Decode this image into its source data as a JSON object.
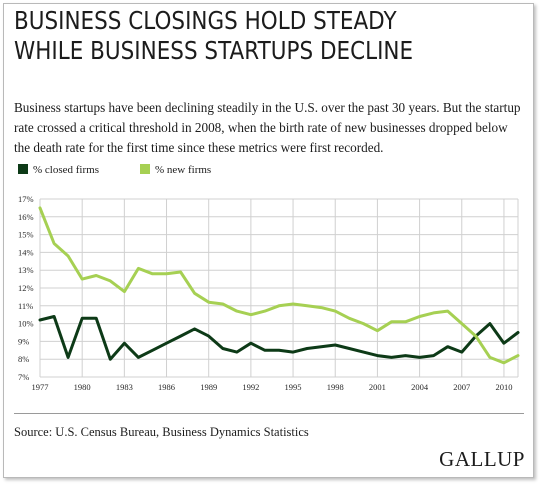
{
  "title": "BUSINESS CLOSINGS HOLD STEADY WHILE BUSINESS STARTUPS DECLINE",
  "subtitle": "Business startups have been declining steadily in the U.S. over the past 30 years. But the startup rate crossed a critical threshold in 2008, when the birth rate of new businesses dropped below the death rate for the first time since these metrics were first recorded.",
  "source": "Source: U.S. Census Bureau, Business Dynamics Statistics",
  "logo": "GALLUP",
  "colors": {
    "closed": "#0d3a17",
    "new": "#a6d053",
    "grid": "#d0d0d0"
  },
  "chart_data": {
    "type": "line",
    "x": [
      1977,
      1978,
      1979,
      1980,
      1981,
      1982,
      1983,
      1984,
      1985,
      1986,
      1987,
      1988,
      1989,
      1990,
      1991,
      1992,
      1993,
      1994,
      1995,
      1996,
      1997,
      1998,
      1999,
      2000,
      2001,
      2002,
      2003,
      2004,
      2005,
      2006,
      2007,
      2008,
      2009,
      2010,
      2011
    ],
    "x_ticks": [
      1977,
      1980,
      1983,
      1986,
      1989,
      1992,
      1995,
      1998,
      2001,
      2004,
      2007,
      2010
    ],
    "y_ticks": [
      7,
      8,
      9,
      10,
      11,
      12,
      13,
      14,
      15,
      16,
      17
    ],
    "y_tick_labels": [
      "7%",
      "8%",
      "9%",
      "10%",
      "11%",
      "12%",
      "13%",
      "14%",
      "15%",
      "16%",
      "17%"
    ],
    "ylim": [
      7,
      17
    ],
    "xlim": [
      1977,
      2011
    ],
    "grid": true,
    "legend_position": "top-left",
    "series": [
      {
        "name": "% closed firms",
        "color": "#0d3a17",
        "values": [
          10.2,
          10.4,
          8.1,
          10.3,
          10.3,
          8.0,
          8.9,
          8.1,
          8.5,
          8.9,
          9.3,
          9.7,
          9.3,
          8.6,
          8.4,
          8.9,
          8.5,
          8.5,
          8.4,
          8.6,
          8.7,
          8.8,
          8.6,
          8.4,
          8.2,
          8.1,
          8.2,
          8.1,
          8.2,
          8.7,
          8.4,
          9.3,
          10.0,
          8.9,
          9.5
        ]
      },
      {
        "name": "% new firms",
        "color": "#a6d053",
        "values": [
          16.5,
          14.5,
          13.8,
          12.5,
          12.7,
          12.4,
          11.8,
          13.1,
          12.8,
          12.8,
          12.9,
          11.7,
          11.2,
          11.1,
          10.7,
          10.5,
          10.7,
          11.0,
          11.1,
          11.0,
          10.9,
          10.7,
          10.3,
          10.0,
          9.6,
          10.1,
          10.1,
          10.4,
          10.6,
          10.7,
          10.0,
          9.3,
          8.1,
          7.8,
          8.2
        ]
      }
    ]
  }
}
